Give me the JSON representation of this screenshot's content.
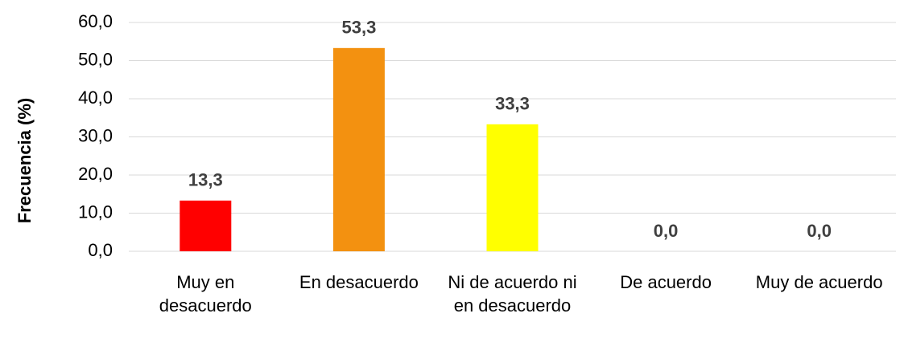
{
  "chart_data": {
    "type": "bar",
    "y_label": "Frecuencia (%)",
    "categories": [
      "Muy en desacuerdo",
      "En desacuerdo",
      "Ni de acuerdo ni en desacuerdo",
      "De acuerdo",
      "Muy de acuerdo"
    ],
    "values": [
      13.3,
      53.3,
      33.3,
      0,
      0
    ],
    "value_labels": [
      "13,3",
      "53,3",
      "33,3",
      "0,0",
      "0,0"
    ],
    "colors": [
      "#ff0000",
      "#f39110",
      "#ffff00"
    ],
    "ylim": [
      0,
      60
    ],
    "yticks": [
      {
        "value": 0,
        "label": "0,0"
      },
      {
        "value": 10,
        "label": "10,0"
      },
      {
        "value": 20,
        "label": "20,0"
      },
      {
        "value": 30,
        "label": "30,0"
      },
      {
        "value": 40,
        "label": "40,0"
      },
      {
        "value": 50,
        "label": "50,0"
      },
      {
        "value": 60,
        "label": "60,0"
      }
    ],
    "grid": true
  }
}
